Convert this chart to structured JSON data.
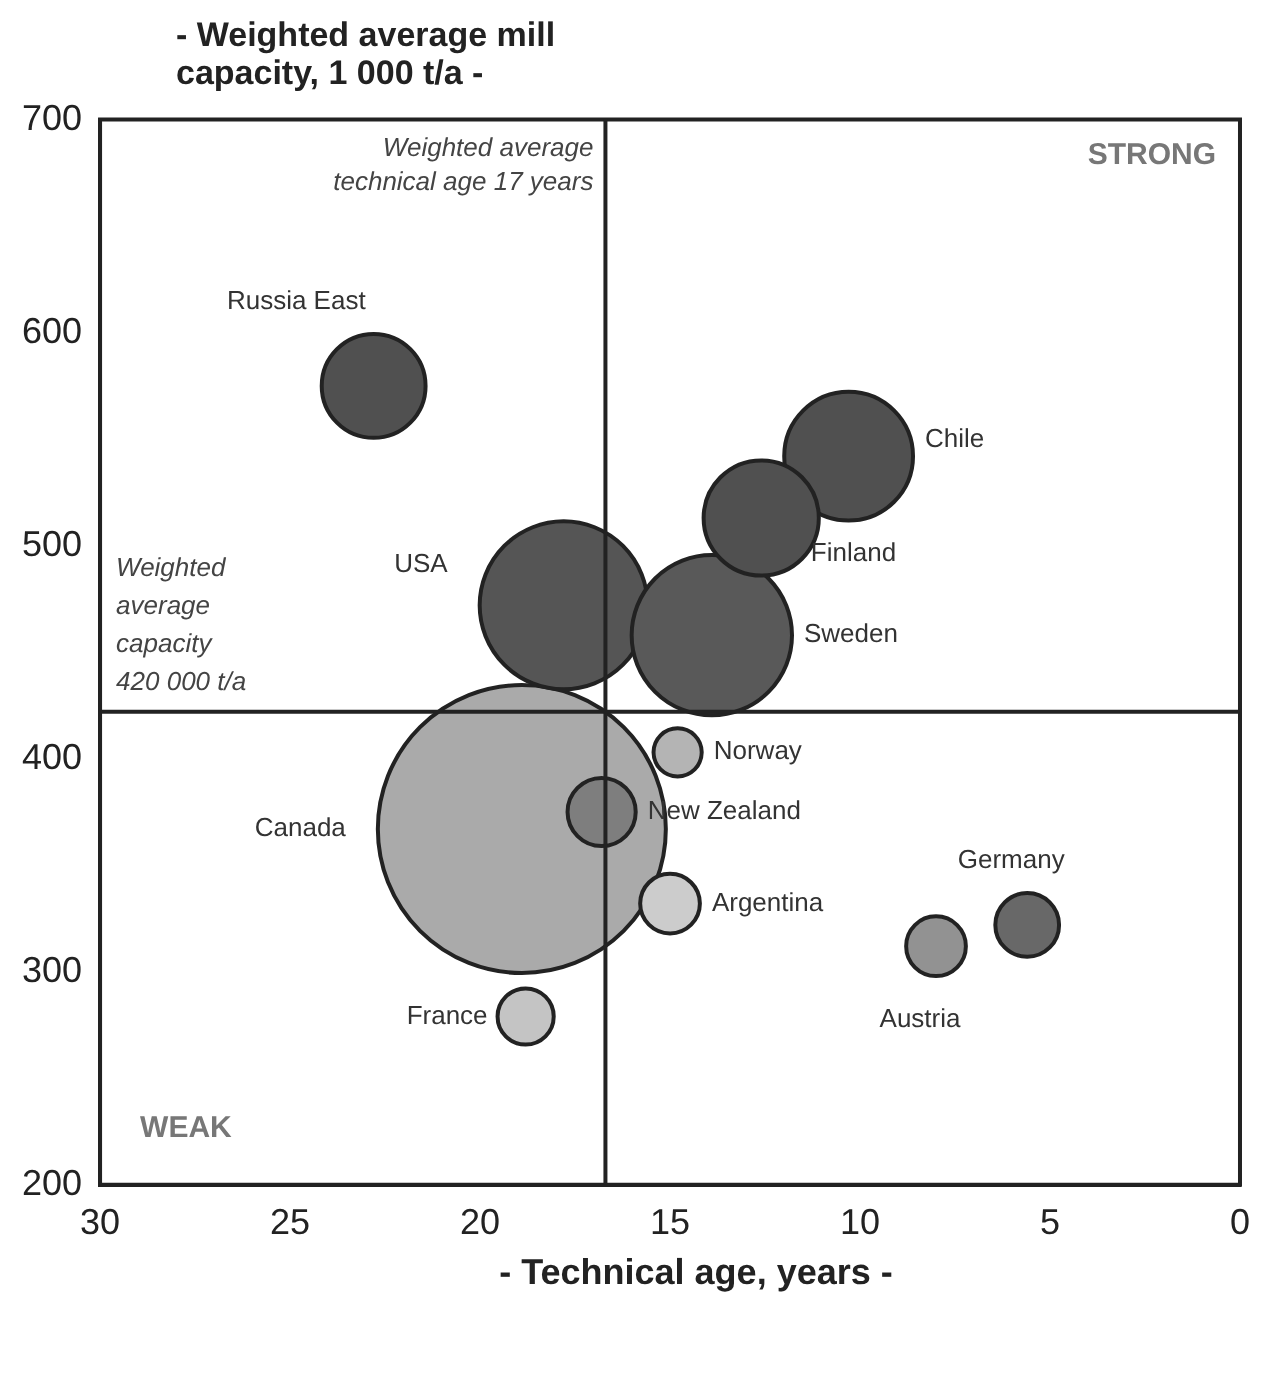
{
  "chart_data": {
    "type": "bubble",
    "xlabel": "- Technical age, years -",
    "ylabel": "- Weighted average mill capacity, 1 000 t/a -",
    "xlim": [
      30,
      0
    ],
    "xticks": [
      30,
      25,
      20,
      15,
      10,
      5,
      0
    ],
    "ylim": [
      200,
      700
    ],
    "yticks": [
      200,
      300,
      400,
      500,
      600,
      700
    ],
    "grid": false,
    "legend": false,
    "relative": false,
    "series": [
      {
        "name": "Russia East",
        "color": "#505050",
        "x": [
          22.8
        ],
        "values": [
          575
        ],
        "sizes": [
          0.13
        ]
      },
      {
        "name": "Chile",
        "color": "#505050",
        "x": [
          10.3
        ],
        "values": [
          542
        ],
        "sizes": [
          0.2
        ]
      },
      {
        "name": "Finland",
        "color": "#505050",
        "x": [
          12.6
        ],
        "values": [
          513
        ],
        "sizes": [
          0.16
        ]
      },
      {
        "name": "USA",
        "color": "#555555",
        "x": [
          17.8
        ],
        "values": [
          472
        ],
        "sizes": [
          0.34
        ]
      },
      {
        "name": "Sweden",
        "color": "#595959",
        "x": [
          13.9
        ],
        "values": [
          458
        ],
        "sizes": [
          0.31
        ]
      },
      {
        "name": "Canada",
        "color": "#aaaaaa",
        "x": [
          18.9
        ],
        "values": [
          367
        ],
        "sizes": [
          1
        ]
      },
      {
        "name": "New Zealand",
        "color": "#7e7e7e",
        "x": [
          16.8
        ],
        "values": [
          375
        ],
        "sizes": [
          0.056
        ]
      },
      {
        "name": "Norway",
        "color": "#b4b4b4",
        "x": [
          14.8
        ],
        "values": [
          403
        ],
        "sizes": [
          0.028
        ]
      },
      {
        "name": "Argentina",
        "color": "#cccccc",
        "x": [
          15.0
        ],
        "values": [
          332
        ],
        "sizes": [
          0.043
        ]
      },
      {
        "name": "France",
        "color": "#c4c4c4",
        "x": [
          18.8
        ],
        "values": [
          279
        ],
        "sizes": [
          0.038
        ]
      },
      {
        "name": "Austria",
        "color": "#929292",
        "x": [
          8.0
        ],
        "values": [
          312
        ],
        "sizes": [
          0.043
        ]
      },
      {
        "name": "Germany",
        "color": "#686868",
        "x": [
          5.6
        ],
        "values": [
          322
        ],
        "sizes": [
          0.049
        ]
      }
    ],
    "ref_lines": [
      {
        "axis": "x",
        "value": 16.7,
        "label": "Weighted average technical age 17 years"
      },
      {
        "axis": "y",
        "value": 422,
        "label": "Weighted average capacity 420 000 t/a"
      }
    ],
    "annotations": [
      "STRONG",
      "WEAK"
    ]
  }
}
